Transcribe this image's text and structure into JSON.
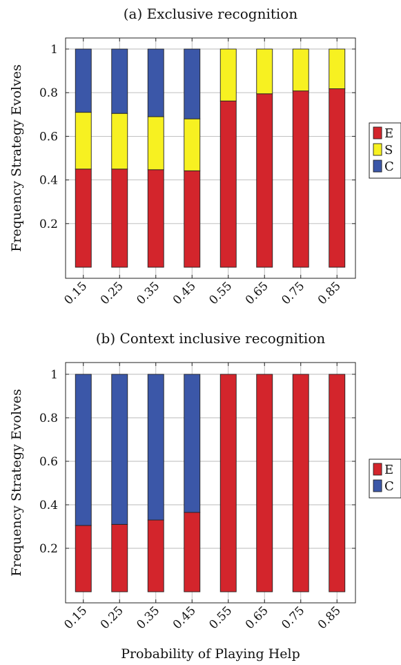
{
  "colors": {
    "E": "#d3252c",
    "S": "#f7f121",
    "C": "#3b57a8"
  },
  "chart_data": [
    {
      "type": "bar",
      "stacked": true,
      "title": "(a) Exclusive recognition",
      "ylabel": "Frequency Strategy Evolves",
      "xlabel": "",
      "categories": [
        "0.15",
        "0.25",
        "0.35",
        "0.45",
        "0.55",
        "0.65",
        "0.75",
        "0.85"
      ],
      "ylim": [
        0,
        1
      ],
      "yticks": [
        0.2,
        0.4,
        0.6,
        0.8,
        1
      ],
      "ytick_labels": [
        "0.2",
        "0.4",
        "0.6",
        "0.8",
        "1"
      ],
      "grid": true,
      "legend_position": "right",
      "series": [
        {
          "name": "E",
          "color_key": "E",
          "values": [
            0.45,
            0.45,
            0.447,
            0.442,
            0.762,
            0.795,
            0.808,
            0.818
          ]
        },
        {
          "name": "S",
          "color_key": "S",
          "values": [
            0.26,
            0.255,
            0.243,
            0.238,
            0.238,
            0.205,
            0.192,
            0.182
          ]
        },
        {
          "name": "C",
          "color_key": "C",
          "values": [
            0.29,
            0.295,
            0.31,
            0.32,
            0,
            0,
            0,
            0
          ]
        }
      ],
      "legend": [
        "E",
        "S",
        "C"
      ]
    },
    {
      "type": "bar",
      "stacked": true,
      "title": "(b) Context inclusive recognition",
      "ylabel": "Frequency Strategy Evolves",
      "xlabel": "Probability of Playing Help",
      "categories": [
        "0.15",
        "0.25",
        "0.35",
        "0.45",
        "0.55",
        "0.65",
        "0.75",
        "0.85"
      ],
      "ylim": [
        0,
        1
      ],
      "yticks": [
        0.2,
        0.4,
        0.6,
        0.8,
        1
      ],
      "ytick_labels": [
        "0.2",
        "0.4",
        "0.6",
        "0.8",
        "1"
      ],
      "grid": true,
      "legend_position": "right",
      "series": [
        {
          "name": "E",
          "color_key": "E",
          "values": [
            0.305,
            0.31,
            0.33,
            0.365,
            1,
            1,
            1,
            1
          ]
        },
        {
          "name": "C",
          "color_key": "C",
          "values": [
            0.695,
            0.69,
            0.67,
            0.635,
            0,
            0,
            0,
            0
          ]
        }
      ],
      "legend": [
        "E",
        "C"
      ]
    }
  ]
}
